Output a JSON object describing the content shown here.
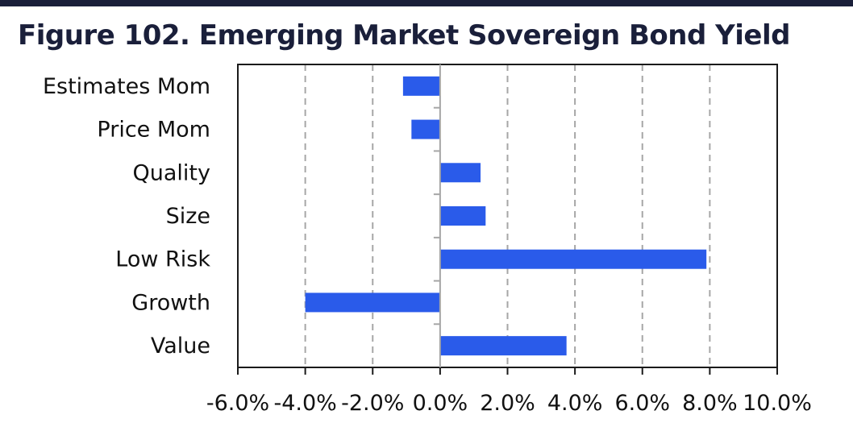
{
  "title": "Figure 102. Emerging Market Sovereign Bond Yield",
  "colors": {
    "bar": "#2a5bea",
    "frame": "#1a1a1a",
    "grid": "#a6a6a6",
    "topbar": "#1a1f3a"
  },
  "chart_data": {
    "type": "bar",
    "orientation": "horizontal",
    "title": "Figure 102. Emerging Market Sovereign Bond Yield",
    "categories": [
      "Estimates Mom",
      "Price Mom",
      "Quality",
      "Size",
      "Low Risk",
      "Growth",
      "Value"
    ],
    "values": [
      -1.1,
      -0.85,
      1.2,
      1.35,
      7.9,
      -4.0,
      3.75
    ],
    "value_unit": "%",
    "xlim": [
      -6,
      10
    ],
    "xticks": [
      -6,
      -4,
      -2,
      0,
      2,
      4,
      6,
      8,
      10
    ],
    "xtick_labels": [
      "-6.0%",
      "-4.0%",
      "-2.0%",
      "0.0%",
      "2.0%",
      "4.0%",
      "6.0%",
      "8.0%",
      "10.0%"
    ],
    "grid": "vertical dashed",
    "legend": "none"
  }
}
